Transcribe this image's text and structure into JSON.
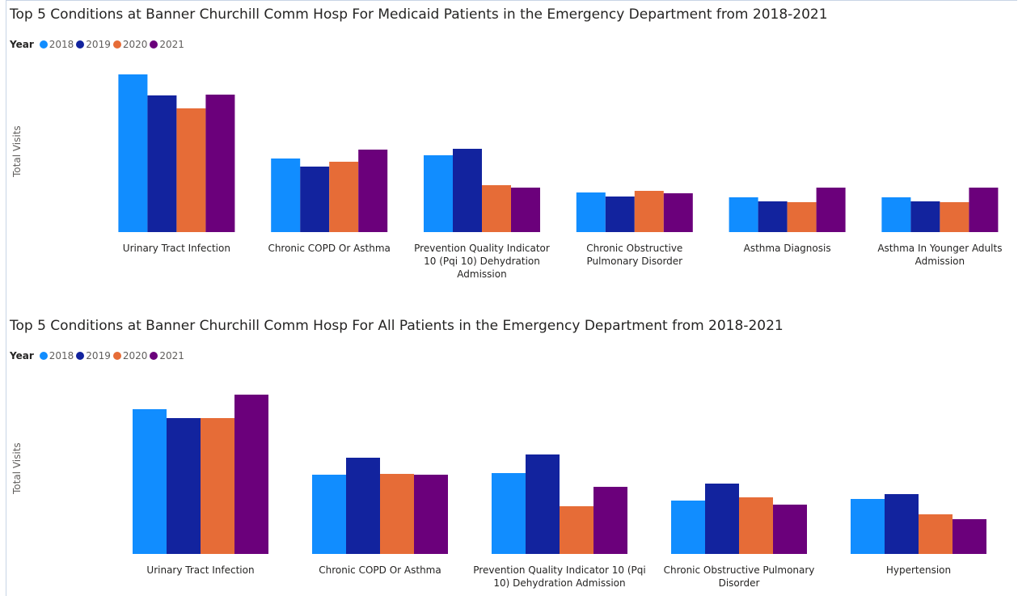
{
  "chart_data": [
    {
      "type": "bar",
      "title": "Top 5 Conditions at Banner Churchill Comm Hosp For Medicaid Patients in the Emergency Department from 2018-2021",
      "y_label": "Total Visits",
      "legend_title": "Year",
      "categories": [
        "Urinary Tract Infection",
        "Chronic COPD Or Asthma",
        "Prevention Quality Indicator 10 (Pqi 10) Dehydration Admission",
        "Chronic Obstructive Pulmonary Disorder",
        "Asthma Diagnosis",
        "Asthma In Younger Adults Admission"
      ],
      "series": [
        {
          "name": "2018",
          "color": "#118DFF",
          "values": [
            195,
            91,
            95,
            49,
            43,
            43
          ]
        },
        {
          "name": "2019",
          "color": "#12239E",
          "values": [
            169,
            81,
            103,
            44,
            38,
            38
          ]
        },
        {
          "name": "2020",
          "color": "#E66C37",
          "values": [
            153,
            87,
            58,
            51,
            37,
            37
          ]
        },
        {
          "name": "2021",
          "color": "#6B007B",
          "values": [
            170,
            102,
            55,
            48,
            55,
            55
          ]
        }
      ],
      "ylim": [
        0,
        212
      ]
    },
    {
      "type": "bar",
      "title": "Top 5 Conditions at Banner Churchill Comm Hosp For All Patients in the Emergency Department from 2018-2021",
      "y_label": "Total Visits",
      "legend_title": "Year",
      "categories": [
        "Urinary Tract Infection",
        "Chronic COPD Or Asthma",
        "Prevention Quality Indicator 10 (Pqi 10) Dehydration Admission",
        "Chronic Obstructive Pulmonary Disorder",
        "Hypertension"
      ],
      "series": [
        {
          "name": "2018",
          "color": "#118DFF",
          "values": [
            179,
            98,
            100,
            66,
            68
          ]
        },
        {
          "name": "2019",
          "color": "#12239E",
          "values": [
            168,
            119,
            123,
            87,
            74
          ]
        },
        {
          "name": "2020",
          "color": "#E66C37",
          "values": [
            168,
            99,
            59,
            70,
            49
          ]
        },
        {
          "name": "2021",
          "color": "#6B007B",
          "values": [
            197,
            98,
            83,
            61,
            43
          ]
        }
      ],
      "ylim": [
        0,
        225
      ]
    }
  ]
}
